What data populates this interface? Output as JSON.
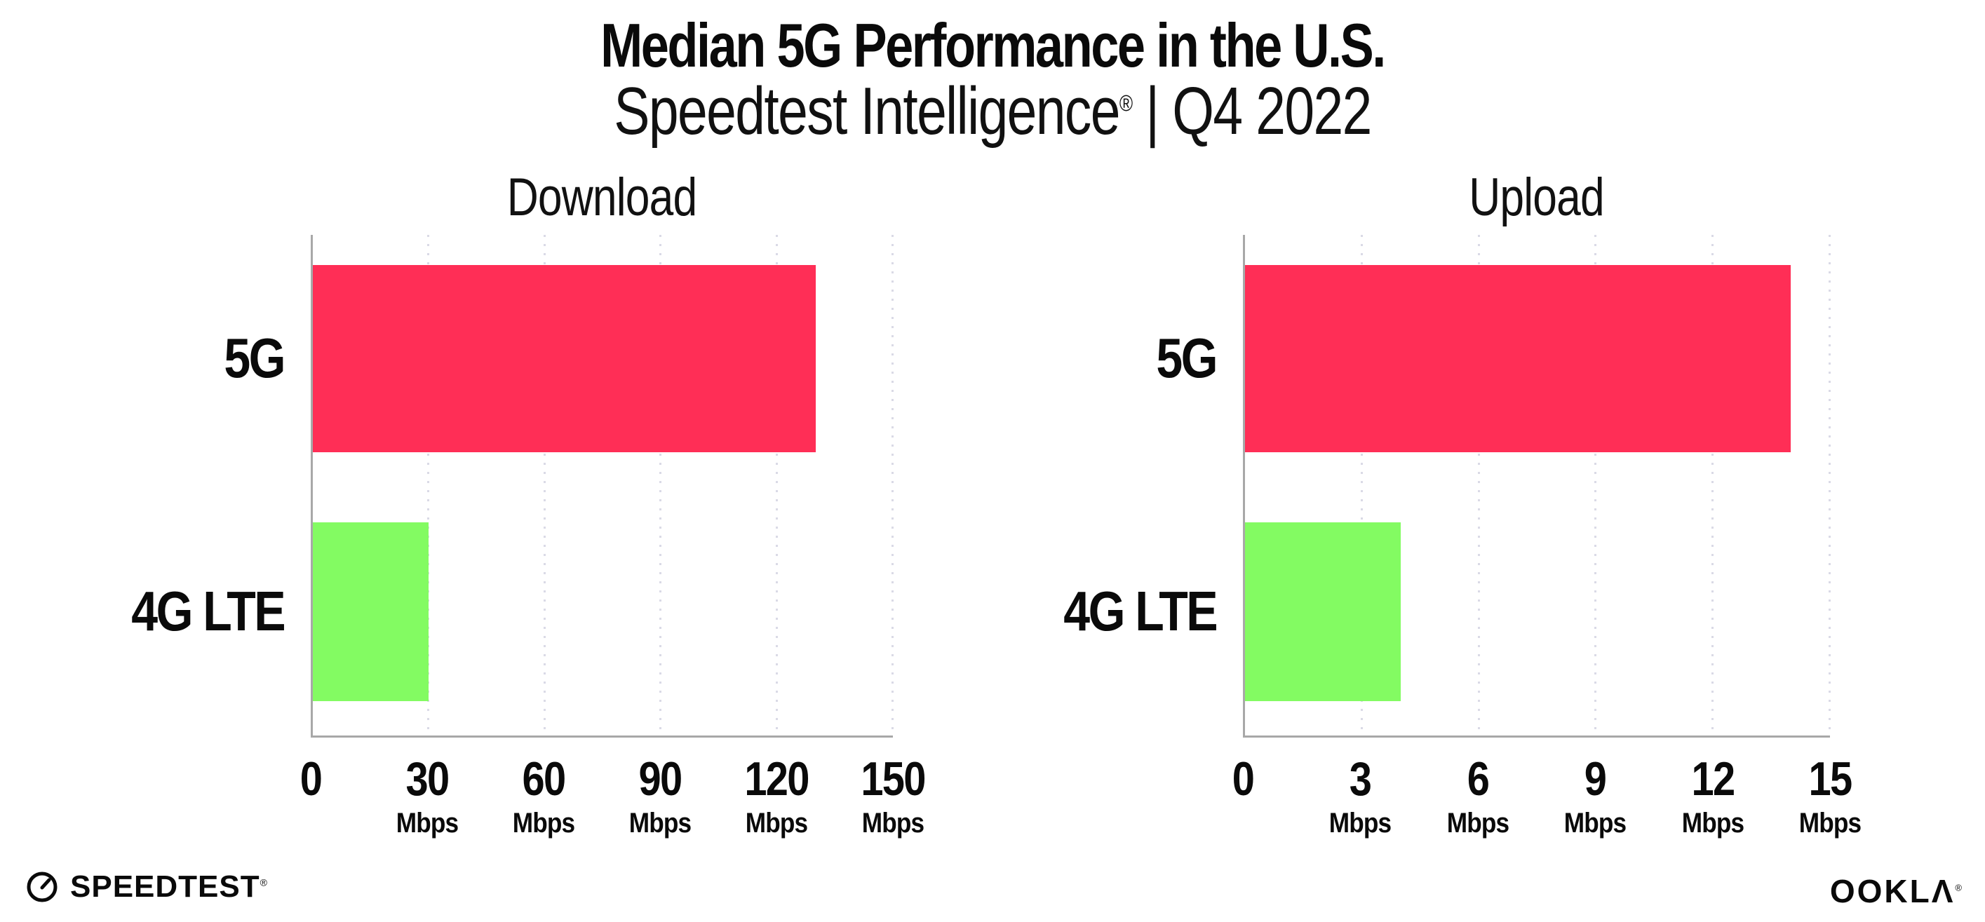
{
  "header": {
    "title": "Median 5G Performance in the U.S.",
    "subtitle_brand": "Speedtest Intelligence",
    "subtitle_reg": "®",
    "subtitle_rest": " | Q4 2022"
  },
  "chart_data": [
    {
      "type": "bar",
      "orientation": "horizontal",
      "title": "Download",
      "categories": [
        "5G",
        "4G LTE"
      ],
      "values": [
        130,
        30
      ],
      "unit": "Mbps",
      "xlim": [
        0,
        150
      ],
      "xticks": [
        0,
        30,
        60,
        90,
        120,
        150
      ],
      "bar_colors": [
        "#FF2E56",
        "#83FB62"
      ],
      "grid": "dotted-vertical",
      "legend": "none"
    },
    {
      "type": "bar",
      "orientation": "horizontal",
      "title": "Upload",
      "categories": [
        "5G",
        "4G LTE"
      ],
      "values": [
        14,
        4
      ],
      "unit": "Mbps",
      "xlim": [
        0,
        15
      ],
      "xticks": [
        0,
        3,
        6,
        9,
        12,
        15
      ],
      "bar_colors": [
        "#FF2E56",
        "#83FB62"
      ],
      "grid": "dotted-vertical",
      "legend": "none"
    }
  ],
  "colors": {
    "bar_5g": "#FF2E56",
    "bar_4g_lte": "#83FB62",
    "axis": "#A8A8A8",
    "grid_dot": "#DADAE6",
    "text": "#0A0A0A",
    "background": "#FFFFFF"
  },
  "footer": {
    "speedtest_label": "SPEEDTEST",
    "speedtest_reg": "®",
    "speedtest_icon": "gauge-icon",
    "ookla_label": "OOKLΛ",
    "ookla_reg": "®"
  }
}
